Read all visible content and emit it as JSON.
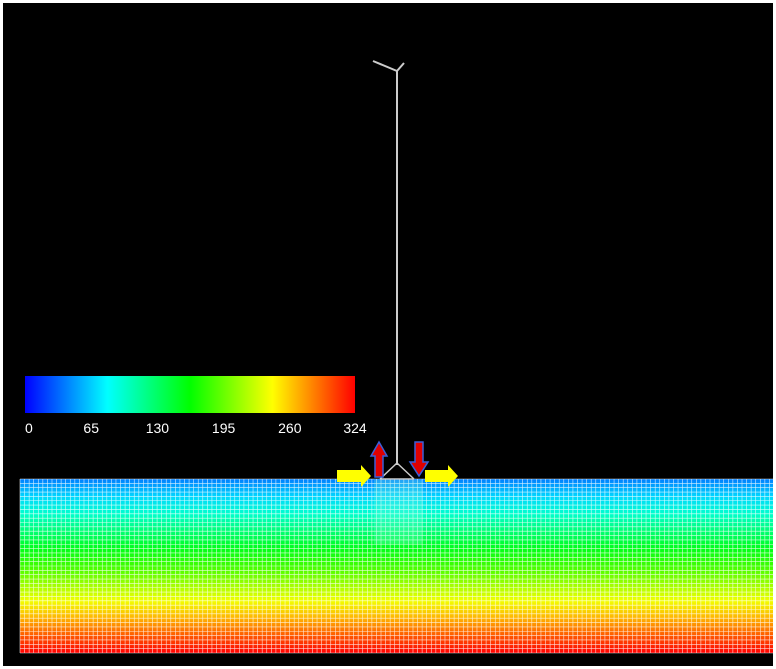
{
  "colorbar": {
    "min": 0,
    "max": 324,
    "tick_labels": [
      "0",
      "65",
      "130",
      "195",
      "260",
      "324"
    ],
    "gradient_colors": [
      "#0000ff",
      "#00ffff",
      "#00ff00",
      "#ffff00",
      "#ff0000"
    ]
  },
  "mesh": {
    "columns": 165,
    "rows": 40,
    "value_top": 40,
    "value_bottom": 324
  },
  "colors": {
    "background": "#000000",
    "grid_lines": "#ffffff",
    "arrow_horizontal": "#ffff00",
    "arrow_vertical": "#e00000",
    "arrow_vertical_outline": "#3a5fd8"
  },
  "structure": {
    "mast_color": "#cccccc"
  },
  "arrows": [
    {
      "name": "arrow-right-left-side",
      "direction": "right",
      "kind": "horizontal"
    },
    {
      "name": "arrow-up",
      "direction": "up",
      "kind": "vertical"
    },
    {
      "name": "arrow-down",
      "direction": "down",
      "kind": "vertical"
    },
    {
      "name": "arrow-right-right-side",
      "direction": "right",
      "kind": "horizontal"
    }
  ]
}
